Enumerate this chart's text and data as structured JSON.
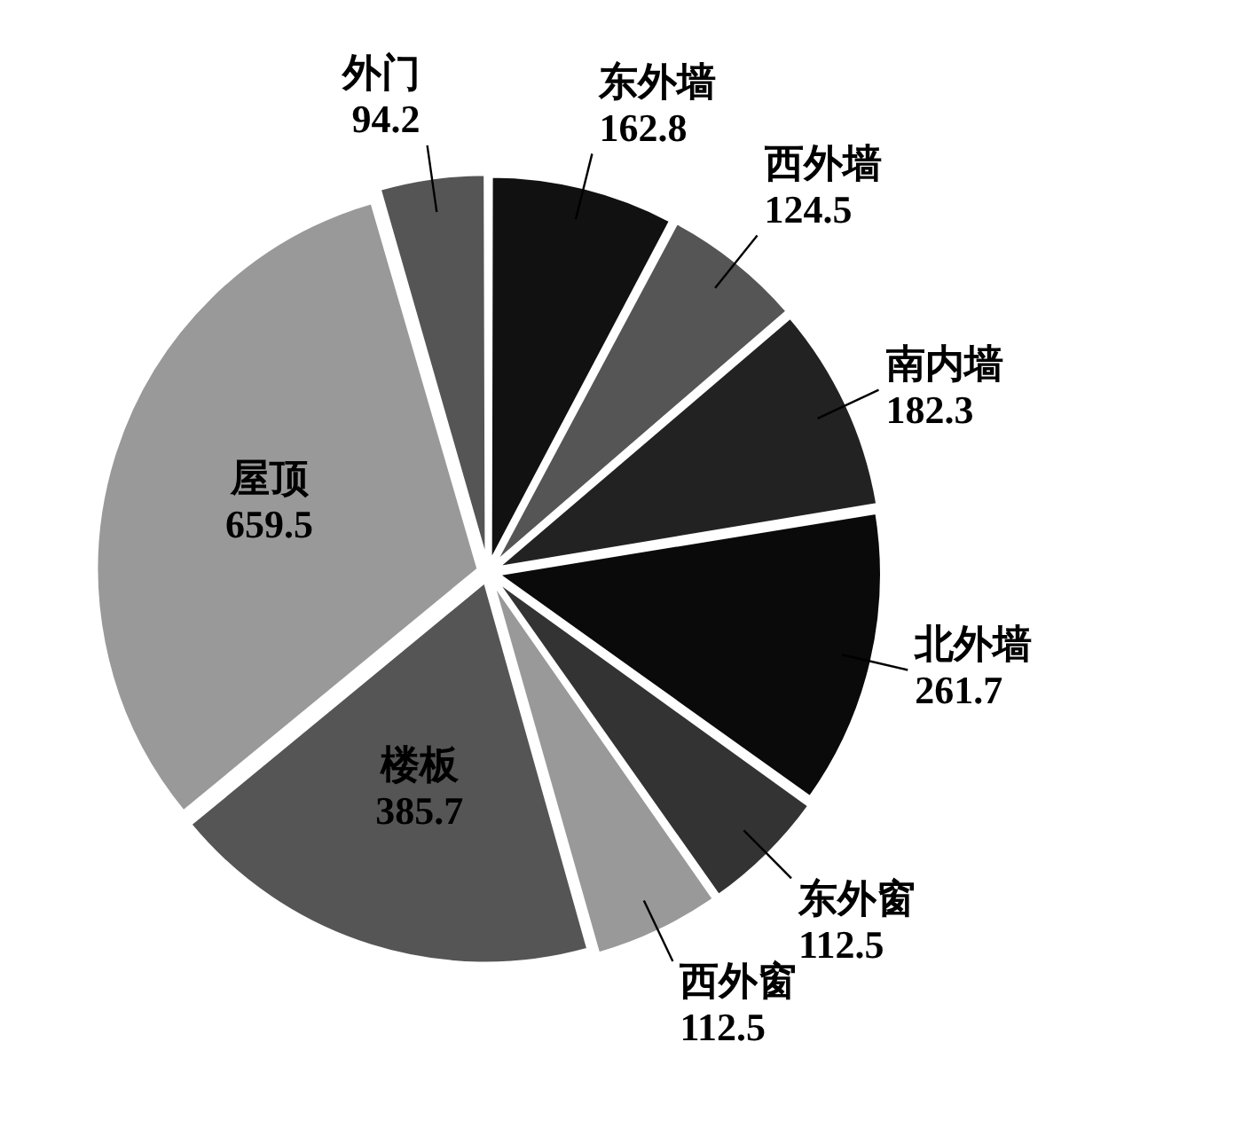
{
  "chart_data": {
    "type": "pie",
    "categories": [
      "东外墙",
      "西外墙",
      "南内墙",
      "北外墙",
      "东外窗",
      "西外窗",
      "楼板",
      "屋顶",
      "外门"
    ],
    "values": [
      162.8,
      124.5,
      182.3,
      261.7,
      112.5,
      112.5,
      385.7,
      659.5,
      94.2
    ],
    "colors": [
      "#111111",
      "#555555",
      "#222222",
      "#0a0a0a",
      "#333333",
      "#999999",
      "#555555",
      "#999999",
      "#555555"
    ],
    "data_labels": true,
    "legend": false
  }
}
